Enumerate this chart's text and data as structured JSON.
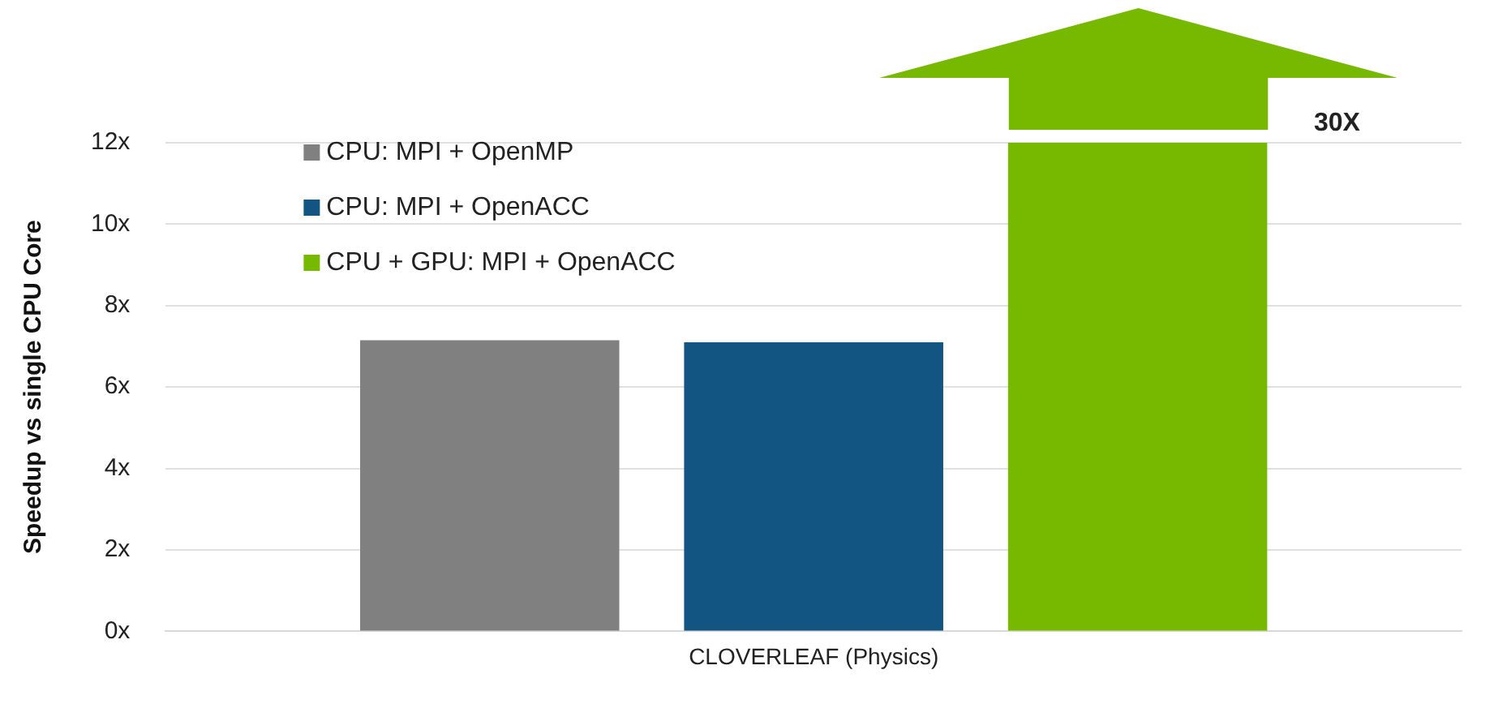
{
  "chart_data": {
    "type": "bar",
    "ylabel": "Speedup vs single CPU Core",
    "categories": [
      "CLOVERLEAF (Physics)"
    ],
    "series": [
      {
        "name": "CPU: MPI + OpenMP",
        "color": "#808080",
        "values": [
          7.15
        ]
      },
      {
        "name": "CPU: MPI + OpenACC",
        "color": "#125482",
        "values": [
          7.1
        ]
      },
      {
        "name": "CPU + GPU: MPI + OpenACC",
        "color": "#76b900",
        "values": [
          12
        ]
      }
    ],
    "ylim": [
      0,
      12
    ],
    "yticks": [
      {
        "value": 0,
        "label": "0x"
      },
      {
        "value": 2,
        "label": "2x"
      },
      {
        "value": 4,
        "label": "4x"
      },
      {
        "value": 6,
        "label": "6x"
      },
      {
        "value": 8,
        "label": "8x"
      },
      {
        "value": 10,
        "label": "10x"
      },
      {
        "value": 12,
        "label": "12x"
      }
    ],
    "grid": "y",
    "legend": "top left",
    "annotations": [
      "30X"
    ]
  }
}
